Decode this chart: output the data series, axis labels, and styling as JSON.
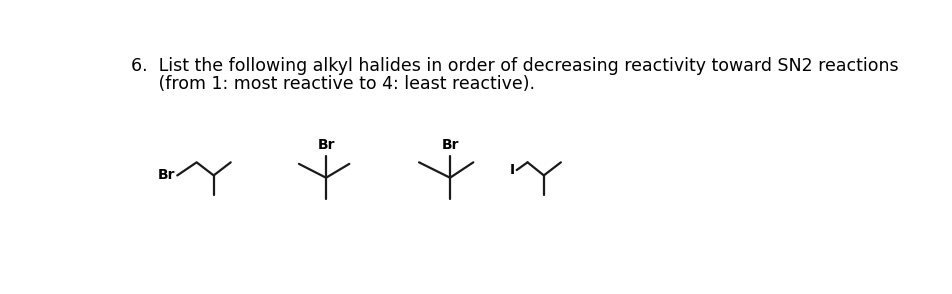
{
  "title_line1": "6.  List the following alkyl halides in order of decreasing reactivity toward SN2 reactions",
  "title_line2": "     (from 1: most reactive to 4: least reactive).",
  "bg_color": "#ffffff",
  "text_color": "#000000",
  "line_color": "#1a1a1a",
  "text_fontsize": 12.5,
  "label1": "Br",
  "label2": "Br",
  "label3": "Br",
  "label4": "I",
  "lw": 1.6
}
